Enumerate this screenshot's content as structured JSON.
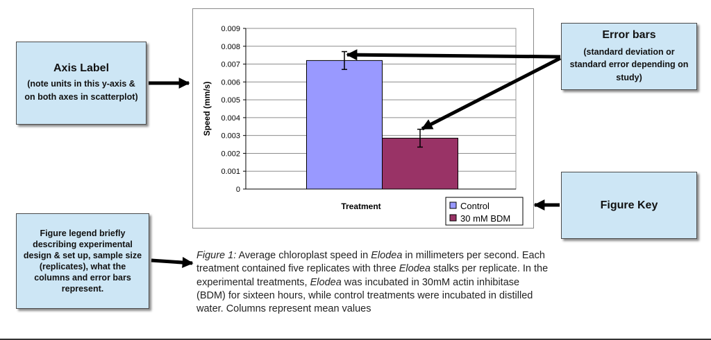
{
  "callouts": {
    "axis_label": {
      "heading": "Axis Label",
      "body": "(note units in this y-axis & on both axes in scatterplot)"
    },
    "error_bars": {
      "heading": "Error bars",
      "body": "(standard deviation or standard error depending on study)"
    },
    "figure_key": {
      "heading": "Figure Key"
    },
    "figure_legend": {
      "body": "Figure legend briefly describing experimental design & set up, sample size (replicates), what the columns and error bars represent."
    }
  },
  "caption": {
    "fig_label": "Figure 1:",
    "t1": " Average chloroplast speed in ",
    "elodea": "Elodea",
    "t2": " in millimeters per second. Each treatment contained five replicates with three ",
    "t3": " stalks per replicate. In the experimental treatments, ",
    "t4": " was incubated in 30mM actin inhibitase (BDM) for sixteen hours, while control treatments were incubated in distilled water. Columns represent mean values"
  },
  "chart_data": {
    "type": "bar",
    "xlabel": "Treatment",
    "ylabel": "Speed (mm/s)",
    "ylim": [
      0,
      0.009
    ],
    "yticks": [
      "0",
      "0.001",
      "0.002",
      "0.003",
      "0.004",
      "0.005",
      "0.006",
      "0.007",
      "0.008",
      "0.009"
    ],
    "grid": true,
    "legend_position": "bottom-right",
    "series": [
      {
        "name": "Control",
        "values": [
          0.0072
        ],
        "error": [
          0.0005
        ],
        "color": "#9999ff"
      },
      {
        "name": "30 mM BDM",
        "values": [
          0.00285
        ],
        "error": [
          0.0005
        ],
        "color": "#993366"
      }
    ]
  }
}
